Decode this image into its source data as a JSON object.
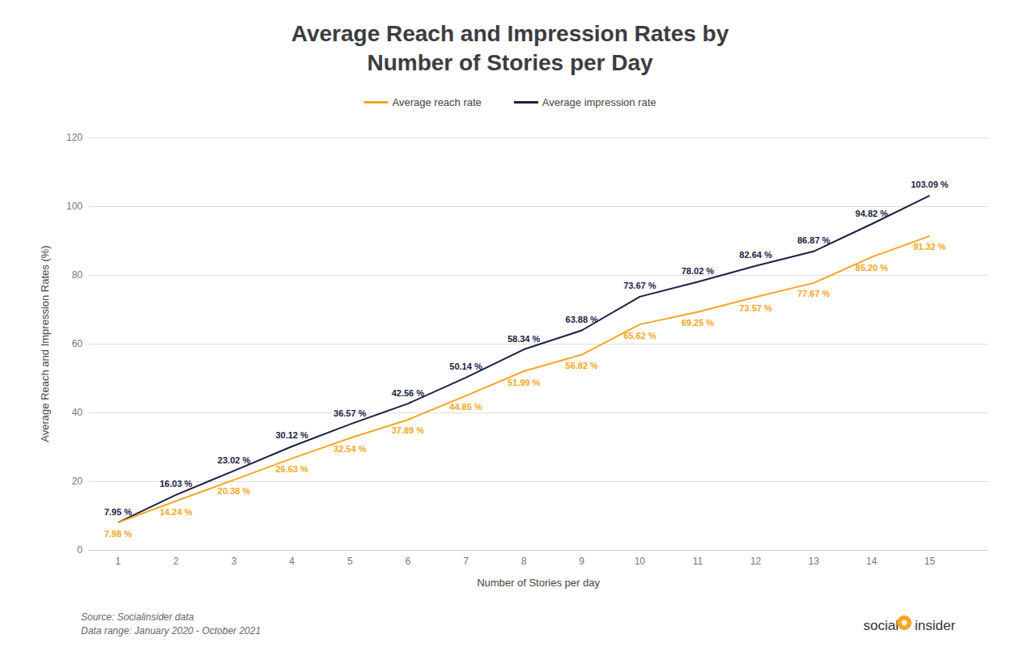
{
  "chart_data": {
    "type": "line",
    "title": "Average Reach and Impression Rates by\nNumber of Stories per Day",
    "x_label": "Number of Stories per day",
    "y_label": "Average Reach and Impression Rates (%)",
    "x": [
      1,
      2,
      3,
      4,
      5,
      6,
      7,
      8,
      9,
      10,
      11,
      12,
      13,
      14,
      15
    ],
    "series": [
      {
        "name": "Average reach rate",
        "color": "#F5A623",
        "values": [
          7.98,
          14.24,
          20.38,
          26.63,
          32.54,
          37.89,
          44.85,
          51.99,
          56.82,
          65.62,
          69.25,
          73.57,
          77.67,
          85.2,
          91.32
        ],
        "value_labels": [
          "7.98 %",
          "14.24 %",
          "20.38 %",
          "26.63 %",
          "32.54 %",
          "37.89 %",
          "44.85 %",
          "51.99 %",
          "56.82 %",
          "65.62 %",
          "69.25 %",
          "73.57 %",
          "77.67 %",
          "85.20 %",
          "91.32 %"
        ]
      },
      {
        "name": "Average impression rate",
        "color": "#1A2044",
        "values": [
          7.95,
          16.03,
          23.02,
          30.12,
          36.57,
          42.56,
          50.14,
          58.34,
          63.88,
          73.67,
          78.02,
          82.64,
          86.87,
          94.82,
          103.09
        ],
        "value_labels": [
          "7.95 %",
          "16.03 %",
          "23.02 %",
          "30.12 %",
          "36.57 %",
          "42.56 %",
          "50.14 %",
          "58.34 %",
          "63.88 %",
          "73.67 %",
          "78.02 %",
          "82.64 %",
          "86.87 %",
          "94.82 %",
          "103.09 %"
        ]
      }
    ],
    "xlim": [
      0.5,
      16.0
    ],
    "xticks": [
      1,
      2,
      3,
      4,
      5,
      6,
      7,
      8,
      9,
      10,
      11,
      12,
      13,
      14,
      15
    ],
    "ylim": [
      0,
      120
    ],
    "yticks": [
      0,
      20,
      40,
      60,
      80,
      100,
      120
    ],
    "grid": true,
    "legend": "top",
    "data_labels": true,
    "annotations": [
      "Source: Socialinsider data\nData range: January 2020 - October 2021",
      "social",
      "insider"
    ]
  }
}
